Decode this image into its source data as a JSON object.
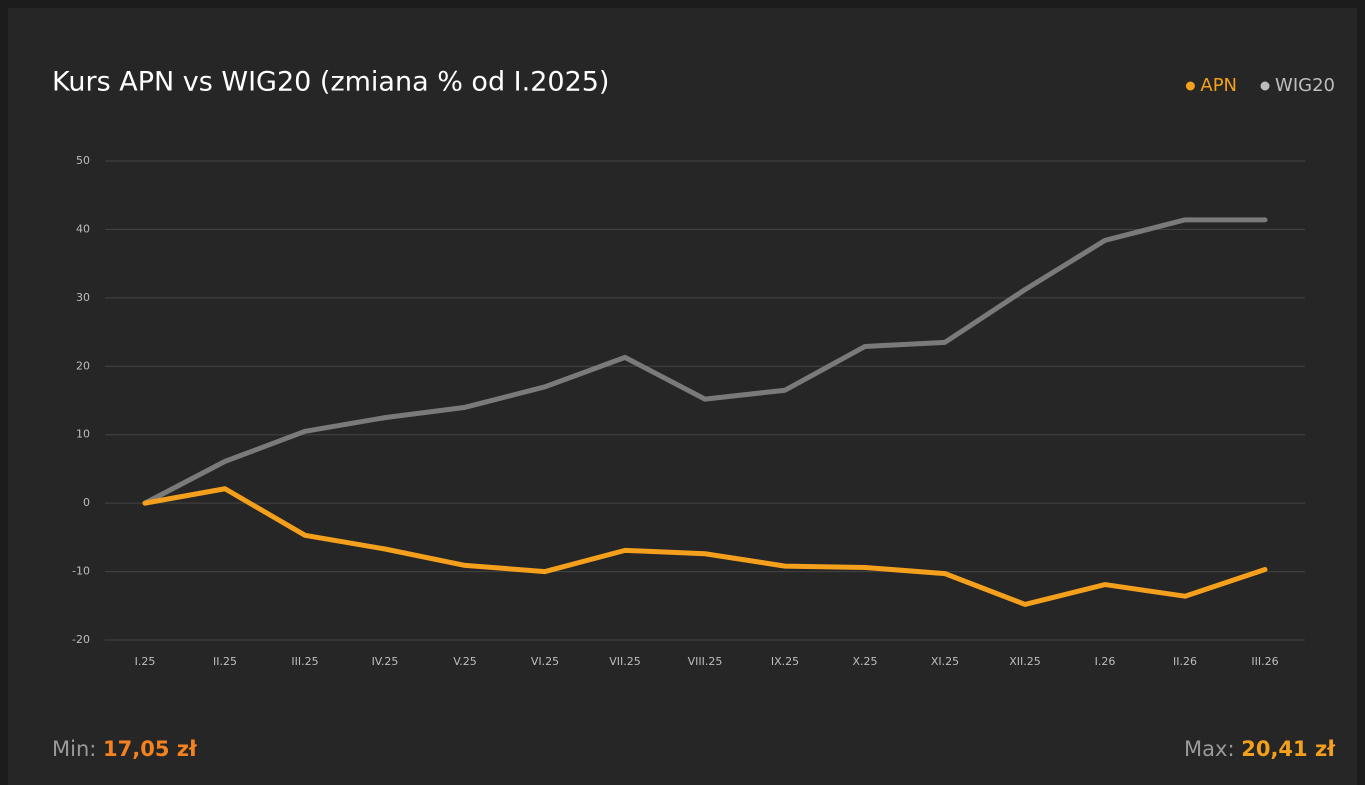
{
  "chart_data": {
    "type": "line",
    "title": "Kurs APN vs WIG20 (zmiana % od I.2025)",
    "categories": [
      "I.25",
      "II.25",
      "III.25",
      "IV.25",
      "V.25",
      "VI.25",
      "VII.25",
      "VIII.25",
      "IX.25",
      "X.25",
      "XI.25",
      "XII.25",
      "I.26",
      "II.26",
      "III.26"
    ],
    "series": [
      {
        "name": "APN",
        "color": "#f5a01c",
        "values": [
          0,
          2.1,
          -4.7,
          -6.7,
          -9.1,
          -10,
          -6.9,
          -7.4,
          -9.2,
          -9.4,
          -10.3,
          -14.8,
          -11.9,
          -13.6,
          -9.7
        ]
      },
      {
        "name": "WIG20",
        "color": "#7a7a7a",
        "values": [
          0,
          6.1,
          10.5,
          12.5,
          14,
          17,
          21.3,
          15.2,
          16.5,
          22.9,
          23.5,
          31.2,
          38.4,
          41.4,
          41.4
        ]
      }
    ],
    "ylim": [
      -20,
      50
    ],
    "yticks": [
      -20,
      -10,
      0,
      10,
      20,
      30,
      40,
      50
    ],
    "grid": true,
    "legend": "top-right"
  },
  "footer": {
    "min_label": "Min:",
    "min_value": "17,05 zł",
    "max_label": "Max:",
    "max_value": "20,41 zł"
  }
}
